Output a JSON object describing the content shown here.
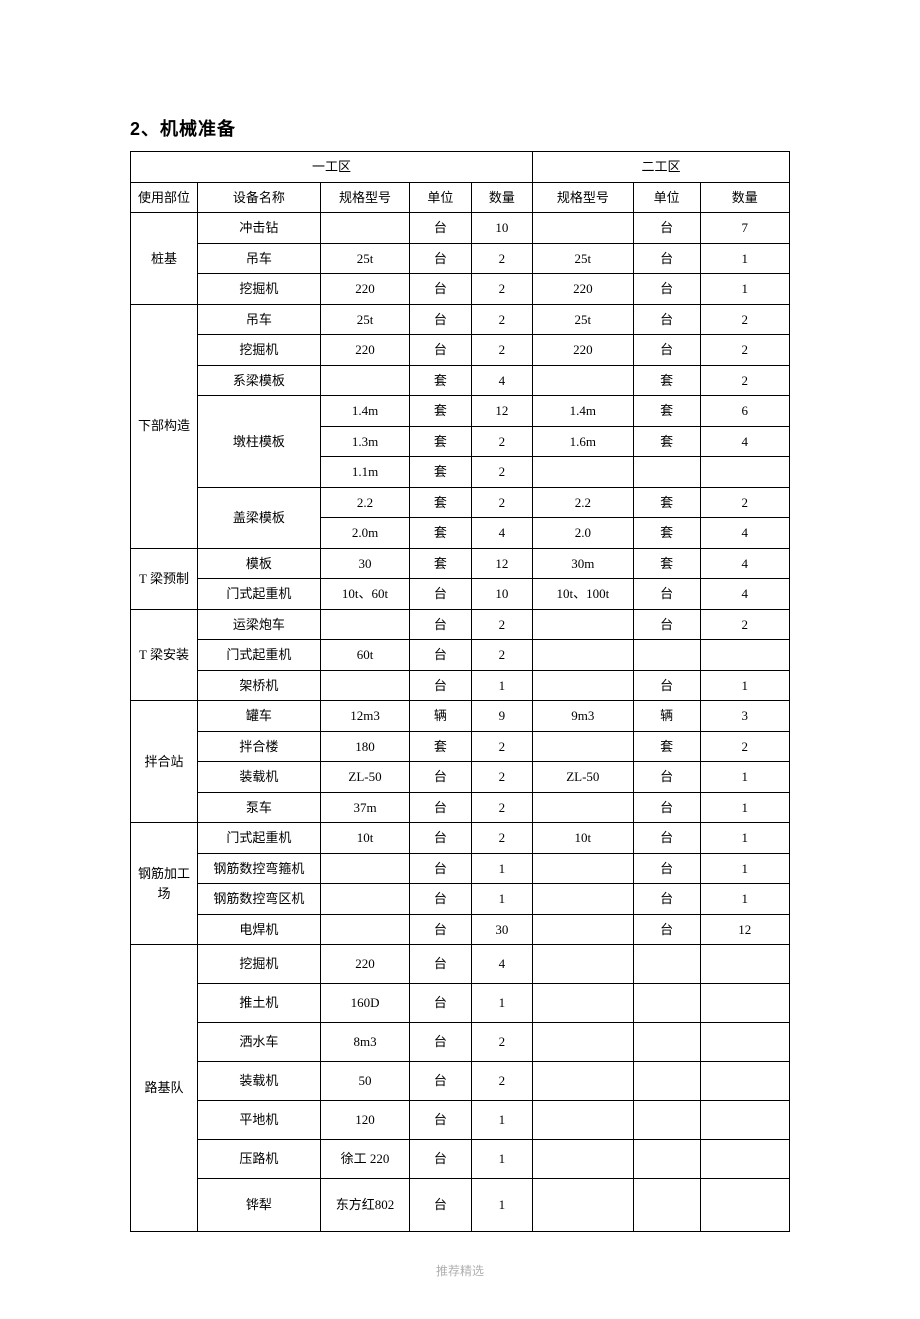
{
  "heading": "2、机械准备",
  "footer": "推荐精选",
  "zone1_header": "一工区",
  "zone2_header": "二工区",
  "col_labels": {
    "dept": "使用部位",
    "equip": "设备名称",
    "spec": "规格型号",
    "unit": "单位",
    "qty": "数量"
  },
  "sections": [
    {
      "name": "桩基",
      "rows": [
        {
          "equip": "冲击钻",
          "spec1": "",
          "unit1": "台",
          "qty1": "10",
          "spec2": "",
          "unit2": "台",
          "qty2": "7"
        },
        {
          "equip": "吊车",
          "spec1": "25t",
          "unit1": "台",
          "qty1": "2",
          "spec2": "25t",
          "unit2": "台",
          "qty2": "1"
        },
        {
          "equip": "挖掘机",
          "spec1": "220",
          "unit1": "台",
          "qty1": "2",
          "spec2": "220",
          "unit2": "台",
          "qty2": "1"
        }
      ]
    },
    {
      "name": "下部构造",
      "rows": [
        {
          "equip": "吊车",
          "spec1": "25t",
          "unit1": "台",
          "qty1": "2",
          "spec2": "25t",
          "unit2": "台",
          "qty2": "2"
        },
        {
          "equip": "挖掘机",
          "spec1": "220",
          "unit1": "台",
          "qty1": "2",
          "spec2": "220",
          "unit2": "台",
          "qty2": "2"
        },
        {
          "equip": "系梁模板",
          "spec1": "",
          "unit1": "套",
          "qty1": "4",
          "spec2": "",
          "unit2": "套",
          "qty2": "2"
        },
        {
          "equip": "墩柱模板",
          "subrows": [
            {
              "spec1": "1.4m",
              "unit1": "套",
              "qty1": "12",
              "spec2": "1.4m",
              "unit2": "套",
              "qty2": "6"
            },
            {
              "spec1": "1.3m",
              "unit1": "套",
              "qty1": "2",
              "spec2": "1.6m",
              "unit2": "套",
              "qty2": "4"
            },
            {
              "spec1": "1.1m",
              "unit1": "套",
              "qty1": "2",
              "spec2": "",
              "unit2": "",
              "qty2": ""
            }
          ]
        },
        {
          "equip": "盖梁模板",
          "subrows": [
            {
              "spec1": "2.2",
              "unit1": "套",
              "qty1": "2",
              "spec2": "2.2",
              "unit2": "套",
              "qty2": "2"
            },
            {
              "spec1": "2.0m",
              "unit1": "套",
              "qty1": "4",
              "spec2": "2.0",
              "unit2": "套",
              "qty2": "4"
            }
          ]
        }
      ]
    },
    {
      "name": "T 梁预制",
      "rows": [
        {
          "equip": "模板",
          "spec1": "30",
          "unit1": "套",
          "qty1": "12",
          "spec2": "30m",
          "unit2": "套",
          "qty2": "4"
        },
        {
          "equip": "门式起重机",
          "spec1": "10t、60t",
          "unit1": "台",
          "qty1": "10",
          "spec2": "10t、100t",
          "unit2": "台",
          "qty2": "4"
        }
      ]
    },
    {
      "name": "T 梁安装",
      "rows": [
        {
          "equip": "运梁炮车",
          "spec1": "",
          "unit1": "台",
          "qty1": "2",
          "spec2": "",
          "unit2": "台",
          "qty2": "2"
        },
        {
          "equip": "门式起重机",
          "spec1": "60t",
          "unit1": "台",
          "qty1": "2",
          "spec2": "",
          "unit2": "",
          "qty2": ""
        },
        {
          "equip": "架桥机",
          "spec1": "",
          "unit1": "台",
          "qty1": "1",
          "spec2": "",
          "unit2": "台",
          "qty2": "1"
        }
      ]
    },
    {
      "name": "拌合站",
      "rows": [
        {
          "equip": "罐车",
          "spec1": "12m3",
          "unit1": "辆",
          "qty1": "9",
          "spec2": "9m3",
          "unit2": "辆",
          "qty2": "3"
        },
        {
          "equip": "拌合楼",
          "spec1": "180",
          "unit1": "套",
          "qty1": "2",
          "spec2": "",
          "unit2": "套",
          "qty2": "2"
        },
        {
          "equip": "装载机",
          "spec1": "ZL-50",
          "unit1": "台",
          "qty1": "2",
          "spec2": "ZL-50",
          "unit2": "台",
          "qty2": "1"
        },
        {
          "equip": "泵车",
          "spec1": "37m",
          "unit1": "台",
          "qty1": "2",
          "spec2": "",
          "unit2": "台",
          "qty2": "1"
        }
      ]
    },
    {
      "name": "钢筋加工场",
      "rows": [
        {
          "equip": "门式起重机",
          "spec1": "10t",
          "unit1": "台",
          "qty1": "2",
          "spec2": "10t",
          "unit2": "台",
          "qty2": "1"
        },
        {
          "equip": "钢筋数控弯箍机",
          "spec1": "",
          "unit1": "台",
          "qty1": "1",
          "spec2": "",
          "unit2": "台",
          "qty2": "1"
        },
        {
          "equip": "钢筋数控弯区机",
          "spec1": "",
          "unit1": "台",
          "qty1": "1",
          "spec2": "",
          "unit2": "台",
          "qty2": "1"
        },
        {
          "equip": "电焊机",
          "spec1": "",
          "unit1": "台",
          "qty1": "30",
          "spec2": "",
          "unit2": "台",
          "qty2": "12"
        }
      ]
    },
    {
      "name": "路基队",
      "tall": true,
      "rows": [
        {
          "equip": "挖掘机",
          "spec1": "220",
          "unit1": "台",
          "qty1": "4",
          "spec2": "",
          "unit2": "",
          "qty2": ""
        },
        {
          "equip": "推土机",
          "spec1": "160D",
          "unit1": "台",
          "qty1": "1",
          "spec2": "",
          "unit2": "",
          "qty2": ""
        },
        {
          "equip": "洒水车",
          "spec1": "8m3",
          "unit1": "台",
          "qty1": "2",
          "spec2": "",
          "unit2": "",
          "qty2": ""
        },
        {
          "equip": "装载机",
          "spec1": "50",
          "unit1": "台",
          "qty1": "2",
          "spec2": "",
          "unit2": "",
          "qty2": ""
        },
        {
          "equip": "平地机",
          "spec1": "120",
          "unit1": "台",
          "qty1": "1",
          "spec2": "",
          "unit2": "",
          "qty2": ""
        },
        {
          "equip": "压路机",
          "spec1": "徐工 220",
          "unit1": "台",
          "qty1": "1",
          "spec2": "",
          "unit2": "",
          "qty2": ""
        },
        {
          "equip": "铧犁",
          "spec1": "东方红802",
          "unit1": "台",
          "qty1": "1",
          "spec2": "",
          "unit2": "",
          "qty2": "",
          "xtall": true
        }
      ]
    }
  ]
}
